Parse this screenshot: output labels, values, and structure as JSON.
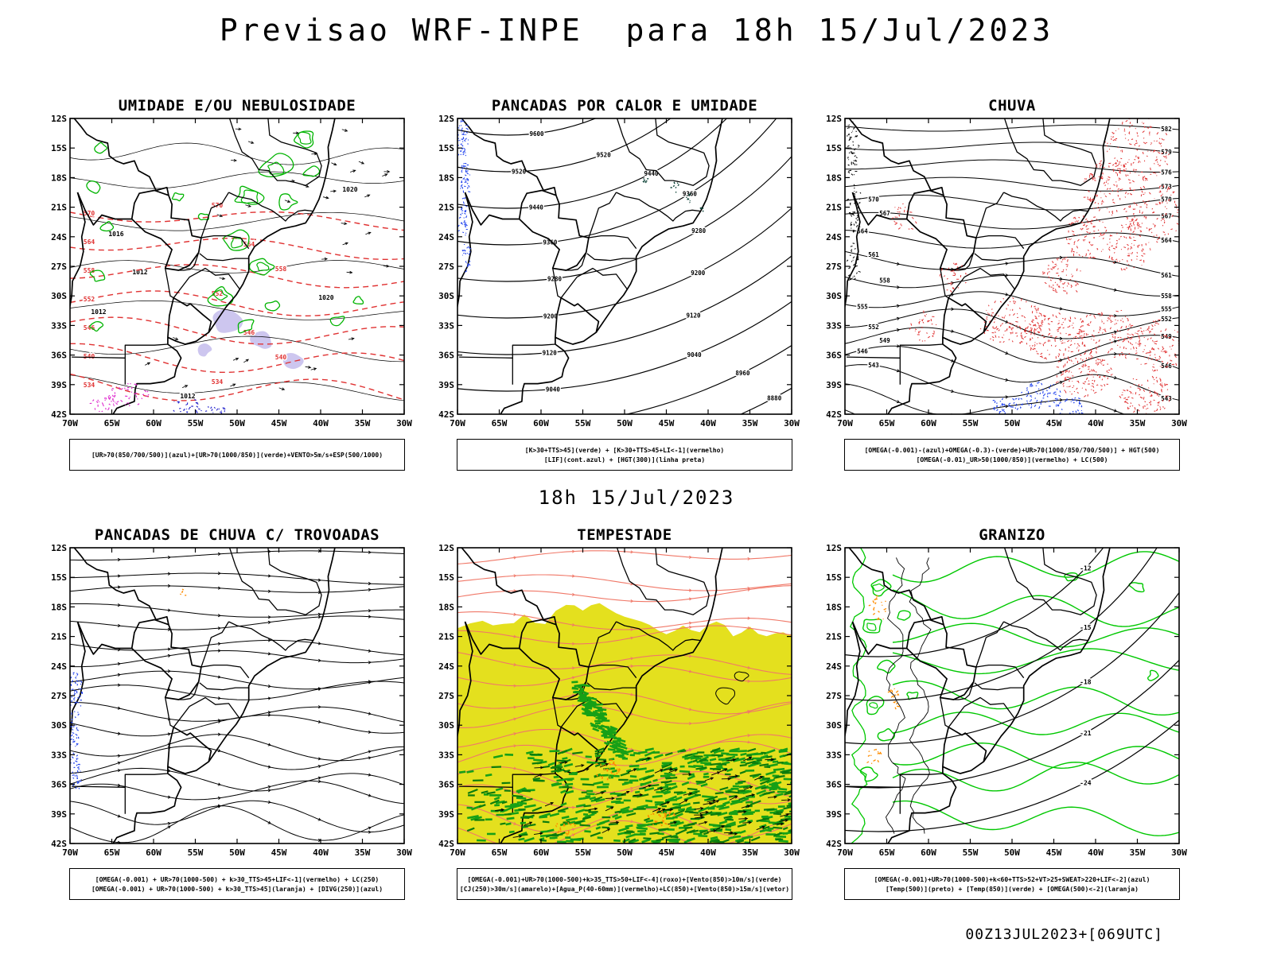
{
  "title": "Previsao WRF-INPE  para 18h 15/Jul/2023",
  "mid_label": "18h 15/Jul/2023",
  "footer": "00Z13JUL2023+[069UTC]",
  "axes": {
    "lat": [
      "12S",
      "15S",
      "18S",
      "21S",
      "24S",
      "27S",
      "30S",
      "33S",
      "36S",
      "39S",
      "42S"
    ],
    "lon": [
      "70W",
      "65W",
      "60W",
      "55W",
      "50W",
      "45W",
      "40W",
      "35W",
      "30W"
    ]
  },
  "panels": [
    {
      "title": "UMIDADE E/OU NEBULOSIDADE",
      "caption1": "[UR>70(850/700/500)](azul)+[UR>70(1000/850)](verde)+VENTO>5m/s+ESP(500/1000)",
      "caption2": "",
      "isobars": [
        "1012",
        "1016",
        "1020"
      ],
      "levels": [
        "570",
        "564",
        "558",
        "552",
        "546",
        "540",
        "534"
      ]
    },
    {
      "title": "PANCADAS POR CALOR E UMIDADE",
      "caption1": "[K>30+TTS>45](verde) + [K>30+TTS>45+LI<-1](vermelho)",
      "caption2": "[LIF](cont.azul) + [HGT(300)](linha preta)",
      "levels": [
        "9600",
        "9520",
        "9440",
        "9360",
        "9280",
        "9200",
        "9120",
        "9040",
        "8960",
        "8880"
      ]
    },
    {
      "title": "CHUVA",
      "caption1": "[OMEGA(-0.001)-(azul)+OMEGA(-0.3)-(verde)+UR>70(1000/850/700/500)] + HGT(500)",
      "caption2": "[OMEGA(-0.01)_UR>50(1000/850)](vermelho) + LC(500)",
      "levels": [
        "540",
        "543",
        "546",
        "549",
        "552",
        "555",
        "558",
        "561",
        "564",
        "567",
        "570",
        "573",
        "576",
        "579",
        "582"
      ]
    },
    {
      "title": "PANCADAS DE CHUVA C/ TROVOADAS",
      "caption1": "[OMEGA(-0.001) + UR>70(1000-500) + k>30_TTS>45+LIF<-1](vermelho) + LC(250)",
      "caption2": "[OMEGA(-0.001) + UR>70(1000-500) + k>30_TTS>45](laranja) + [DIVG(250)](azul)"
    },
    {
      "title": "TEMPESTADE",
      "caption1": "[OMEGA(-0.001)+UR>70(1000-500)+k>35_TTS>50+LIF<-4](roxo)+[Vento(850)>10m/s](verde)",
      "caption2": "[CJ(250)>30m/s](amarelo)+[Agua_P(40-60mm)](vermelho)+LC(850)+[Vento(850)>15m/s](vetor)"
    },
    {
      "title": "GRANIZO",
      "caption1": "[OMEGA(-0.001)+UR>70(1000-500)+k<60+TTS>52+VT>25+SWEAT>220+LIF<-2](azul)",
      "caption2": "[Temp(500)](preto) + [Temp(850)](verde) + [OMEGA(500)<-2](laranja)",
      "levels": [
        "-12",
        "-15",
        "-18",
        "-21",
        "-24"
      ]
    }
  ],
  "colors": {
    "red": "#e03232",
    "green": "#00b400",
    "green_bright": "#00c800",
    "green_mid": "#16a016",
    "green_dark": "#0c7c0c",
    "blue": "#2244ee",
    "navy": "#2222cc",
    "yellow": "#e4e01e",
    "salmon": "#f07868",
    "lavender": "#cdc6ef",
    "magenta": "#dd22cc",
    "orange": "#ff8c00",
    "teal_dark": "#0a4034",
    "black": "#000000"
  }
}
